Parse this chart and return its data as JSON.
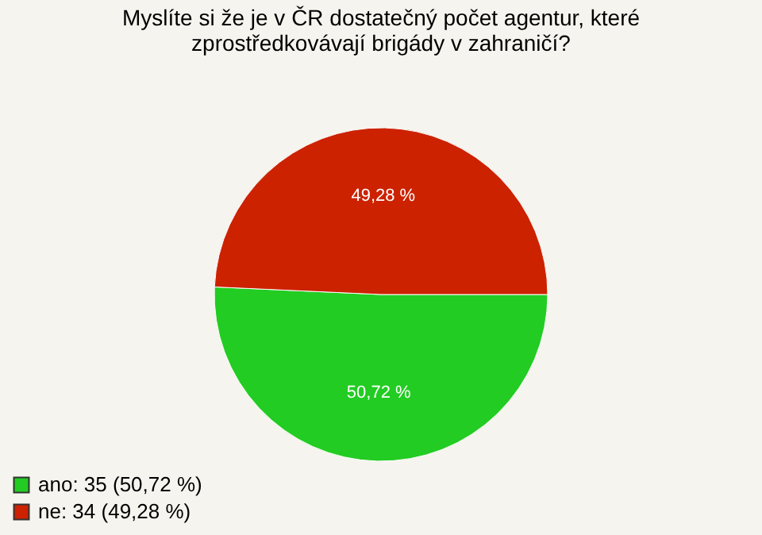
{
  "chart_data": {
    "type": "pie",
    "title": [
      "Myslíte si že je v ČR dostatečný počet agentur, které",
      "zprostředkovávají brigády v zahraničí?"
    ],
    "categories": [
      "ano: 35 (50,72 %)",
      "ne: 34 (49,28 %)"
    ],
    "values": [
      50.72,
      49.28
    ],
    "value_labels": [
      "50,72 %",
      "49,28 %"
    ],
    "colors": [
      "#22cc22",
      "#cc2200"
    ],
    "legend": "bottom left"
  }
}
